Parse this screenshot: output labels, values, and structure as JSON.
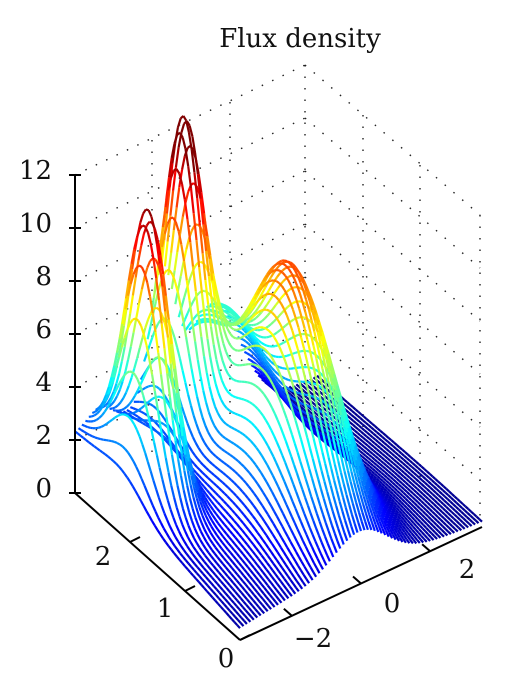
{
  "chart_data": {
    "type": "surface",
    "title": "Flux density",
    "zlabel": "",
    "xlabel": "",
    "ylabel": "",
    "zlim": [
      0,
      12
    ],
    "xlim": [
      -3.5,
      3.5
    ],
    "ylim": [
      0,
      3
    ],
    "z_ticks": [
      "0",
      "2",
      "4",
      "6",
      "8",
      "10",
      "12"
    ],
    "x_ticks": [
      "−2",
      "0",
      "2"
    ],
    "y_ticks": [
      "0",
      "1",
      "2"
    ],
    "grid": true,
    "colormap": "jet",
    "view": "3d-perspective",
    "peaks": [
      {
        "x": -2.8,
        "y": 2.1,
        "z": 11.5
      },
      {
        "x": -1.0,
        "y": 2.6,
        "z": 12.0
      },
      {
        "x": 0.0,
        "y": 1.3,
        "z": 9.4
      }
    ],
    "baseline_values": [
      {
        "x": 3.0,
        "y": 0.0,
        "z": 0.1
      },
      {
        "x": -3.0,
        "y": 2.8,
        "z": 2.2
      },
      {
        "x": 0.5,
        "y": 2.9,
        "z": 5.9
      }
    ]
  }
}
